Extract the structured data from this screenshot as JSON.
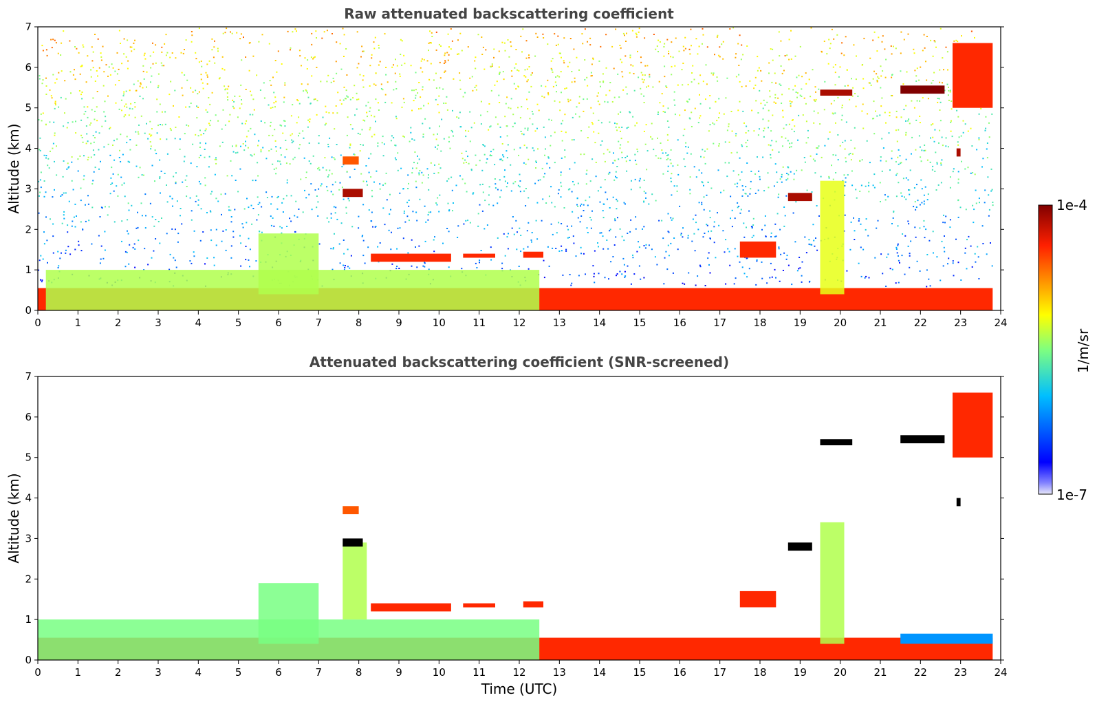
{
  "chart_data": [
    {
      "type": "heatmap",
      "title": "Raw attenuated backscattering coefficient",
      "xlabel": "",
      "ylabel": "Altitude (km)",
      "xlim": [
        0,
        24
      ],
      "ylim": [
        0,
        7
      ],
      "x_ticks": [
        "0",
        "1",
        "2",
        "3",
        "4",
        "5",
        "6",
        "7",
        "8",
        "9",
        "10",
        "11",
        "12",
        "13",
        "14",
        "15",
        "16",
        "17",
        "18",
        "19",
        "20",
        "21",
        "22",
        "23",
        "24"
      ],
      "y_ticks": [
        "0",
        "1",
        "2",
        "3",
        "4",
        "5",
        "6",
        "7"
      ],
      "features": [
        {
          "kind": "noise_background",
          "description_value": "dense speckle increasing with altitude",
          "x": [
            0,
            23.8
          ],
          "y": [
            0.6,
            7
          ],
          "level": 0.45
        },
        {
          "kind": "surface_layer",
          "x": [
            0,
            23.8
          ],
          "y": [
            0,
            0.55
          ],
          "level": 0.85
        },
        {
          "kind": "boundary_layer",
          "x": [
            0.2,
            12.5
          ],
          "y": [
            0,
            1.0
          ],
          "level": 0.55
        },
        {
          "kind": "convective_plume",
          "x": [
            5.5,
            7.0
          ],
          "y": [
            0.4,
            1.9
          ],
          "level": 0.55
        },
        {
          "kind": "cloud",
          "x": [
            7.6,
            8.1
          ],
          "y": [
            2.8,
            3.0
          ],
          "level": 0.95
        },
        {
          "kind": "cloud",
          "x": [
            7.6,
            8.0
          ],
          "y": [
            3.6,
            3.8
          ],
          "level": 0.8
        },
        {
          "kind": "cloud",
          "x": [
            8.3,
            10.3
          ],
          "y": [
            1.2,
            1.4
          ],
          "level": 0.85
        },
        {
          "kind": "cloud",
          "x": [
            10.6,
            11.4
          ],
          "y": [
            1.3,
            1.4
          ],
          "level": 0.85
        },
        {
          "kind": "cloud",
          "x": [
            12.1,
            12.6
          ],
          "y": [
            1.3,
            1.45
          ],
          "level": 0.85
        },
        {
          "kind": "cloud",
          "x": [
            17.5,
            18.4
          ],
          "y": [
            1.3,
            1.7
          ],
          "level": 0.85
        },
        {
          "kind": "cloud",
          "x": [
            18.7,
            19.3
          ],
          "y": [
            2.7,
            2.9
          ],
          "level": 0.95
        },
        {
          "kind": "cloud",
          "x": [
            19.5,
            20.3
          ],
          "y": [
            5.3,
            5.45
          ],
          "level": 0.95
        },
        {
          "kind": "cloud",
          "x": [
            21.5,
            22.6
          ],
          "y": [
            5.35,
            5.55
          ],
          "level": 1.0
        },
        {
          "kind": "cloud",
          "x": [
            22.8,
            23.8
          ],
          "y": [
            5.0,
            6.6
          ],
          "level": 0.85
        },
        {
          "kind": "cloud",
          "x": [
            22.9,
            23.0
          ],
          "y": [
            3.8,
            4.0
          ],
          "level": 0.95
        },
        {
          "kind": "convective_plume",
          "x": [
            19.5,
            20.1
          ],
          "y": [
            0.4,
            3.2
          ],
          "level": 0.6
        }
      ]
    },
    {
      "type": "heatmap",
      "title": "Attenuated backscattering coefficient (SNR-screened)",
      "xlabel": "Time (UTC)",
      "ylabel": "Altitude (km)",
      "xlim": [
        0,
        24
      ],
      "ylim": [
        0,
        7
      ],
      "x_ticks": [
        "0",
        "1",
        "2",
        "3",
        "4",
        "5",
        "6",
        "7",
        "8",
        "9",
        "10",
        "11",
        "12",
        "13",
        "14",
        "15",
        "16",
        "17",
        "18",
        "19",
        "20",
        "21",
        "22",
        "23",
        "24"
      ],
      "y_ticks": [
        "0",
        "1",
        "2",
        "3",
        "4",
        "5",
        "6",
        "7"
      ],
      "features": [
        {
          "kind": "surface_layer",
          "x": [
            0,
            23.8
          ],
          "y": [
            0,
            0.55
          ],
          "level": 0.85
        },
        {
          "kind": "boundary_layer",
          "x": [
            0,
            12.5
          ],
          "y": [
            0,
            1.0
          ],
          "level": 0.5
        },
        {
          "kind": "convective_plume",
          "x": [
            5.5,
            7.0
          ],
          "y": [
            0.4,
            1.9
          ],
          "level": 0.5
        },
        {
          "kind": "convective_plume",
          "x": [
            7.6,
            8.2
          ],
          "y": [
            1.0,
            2.9
          ],
          "level": 0.55
        },
        {
          "kind": "cloud",
          "x": [
            7.6,
            8.1
          ],
          "y": [
            2.8,
            3.0
          ],
          "level": 1.0
        },
        {
          "kind": "cloud",
          "x": [
            7.6,
            8.0
          ],
          "y": [
            3.6,
            3.8
          ],
          "level": 0.8
        },
        {
          "kind": "cloud",
          "x": [
            8.3,
            10.3
          ],
          "y": [
            1.2,
            1.4
          ],
          "level": 0.85
        },
        {
          "kind": "cloud",
          "x": [
            10.6,
            11.4
          ],
          "y": [
            1.3,
            1.4
          ],
          "level": 0.85
        },
        {
          "kind": "cloud",
          "x": [
            12.1,
            12.6
          ],
          "y": [
            1.3,
            1.45
          ],
          "level": 0.85
        },
        {
          "kind": "cloud",
          "x": [
            17.5,
            18.4
          ],
          "y": [
            1.3,
            1.7
          ],
          "level": 0.85
        },
        {
          "kind": "cloud",
          "x": [
            18.7,
            19.3
          ],
          "y": [
            2.7,
            2.9
          ],
          "level": 1.0
        },
        {
          "kind": "cloud",
          "x": [
            19.5,
            20.3
          ],
          "y": [
            5.3,
            5.45
          ],
          "level": 0.95
        },
        {
          "kind": "cloud",
          "x": [
            21.5,
            22.6
          ],
          "y": [
            5.35,
            5.55
          ],
          "level": 1.0
        },
        {
          "kind": "cloud",
          "x": [
            22.8,
            23.8
          ],
          "y": [
            5.0,
            6.6
          ],
          "level": 0.85
        },
        {
          "kind": "cloud",
          "x": [
            22.9,
            23.0
          ],
          "y": [
            3.8,
            4.0
          ],
          "level": 1.0
        },
        {
          "kind": "convective_plume",
          "x": [
            19.5,
            20.1
          ],
          "y": [
            0.4,
            3.4
          ],
          "level": 0.55
        },
        {
          "kind": "residual_layer",
          "x": [
            21.5,
            23.8
          ],
          "y": [
            0.4,
            0.65
          ],
          "level": 0.3
        }
      ]
    }
  ],
  "colorbar": {
    "label": "1/m/sr",
    "max_label": "1e-4",
    "min_label": "1e-7",
    "scale": "log",
    "colormap": "jet",
    "range": [
      1e-07,
      0.0001
    ],
    "saturated_color": "#000000"
  }
}
